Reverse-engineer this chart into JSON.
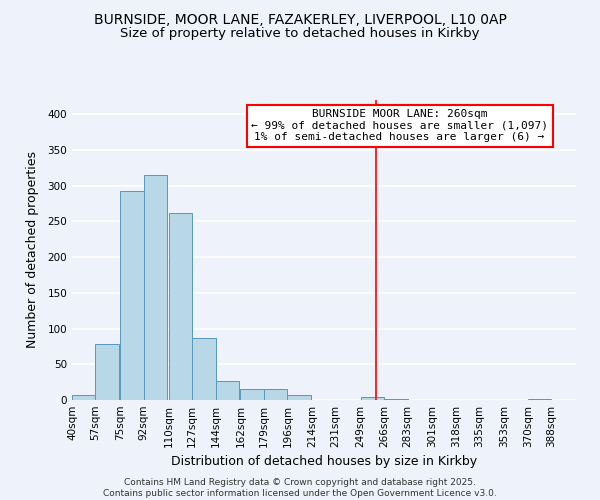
{
  "title": "BURNSIDE, MOOR LANE, FAZAKERLEY, LIVERPOOL, L10 0AP",
  "subtitle": "Size of property relative to detached houses in Kirkby",
  "xlabel": "Distribution of detached houses by size in Kirkby",
  "ylabel": "Number of detached properties",
  "bar_left_edges": [
    40,
    57,
    75,
    92,
    110,
    127,
    144,
    162,
    179,
    196,
    214,
    231,
    249,
    266,
    283,
    301,
    318,
    335,
    353,
    370
  ],
  "bar_heights": [
    7,
    79,
    292,
    315,
    262,
    87,
    27,
    15,
    15,
    7,
    0,
    0,
    4,
    1,
    0,
    0,
    0,
    0,
    0,
    1
  ],
  "bin_width": 17,
  "bar_color": "#b8d8e8",
  "bar_edge_color": "#5599bb",
  "tick_labels": [
    "40sqm",
    "57sqm",
    "75sqm",
    "92sqm",
    "110sqm",
    "127sqm",
    "144sqm",
    "162sqm",
    "179sqm",
    "196sqm",
    "214sqm",
    "231sqm",
    "249sqm",
    "266sqm",
    "283sqm",
    "301sqm",
    "318sqm",
    "335sqm",
    "353sqm",
    "370sqm",
    "388sqm"
  ],
  "vline_x": 260,
  "vline_color": "red",
  "annotation_line1": "BURNSIDE MOOR LANE: 260sqm",
  "annotation_line2": "← 99% of detached houses are smaller (1,097)",
  "annotation_line3": "1% of semi-detached houses are larger (6) →",
  "ylim": [
    0,
    420
  ],
  "xlim": [
    40,
    405
  ],
  "background_color": "#eef2fa",
  "grid_color": "white",
  "footer_text": "Contains HM Land Registry data © Crown copyright and database right 2025.\nContains public sector information licensed under the Open Government Licence v3.0.",
  "title_fontsize": 10,
  "subtitle_fontsize": 9.5,
  "axis_label_fontsize": 9,
  "tick_fontsize": 7.5,
  "annotation_fontsize": 8,
  "footer_fontsize": 6.5
}
